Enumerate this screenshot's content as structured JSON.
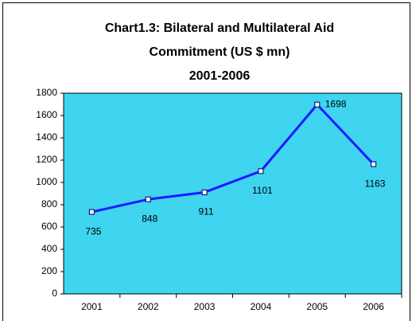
{
  "chart_data": {
    "type": "line",
    "title": [
      "Chart1.3:  Bilateral and Multilateral Aid",
      "Commitment (US $ mn)",
      "2001-2006"
    ],
    "categories": [
      "2001",
      "2002",
      "2003",
      "2004",
      "2005",
      "2006"
    ],
    "series": [
      {
        "name": "Aid Commitment",
        "color": "#1a1aff",
        "values": [
          735,
          848,
          911,
          1101,
          1698,
          1163
        ]
      }
    ],
    "ylim": [
      0,
      1800
    ],
    "yticks": [
      0,
      200,
      400,
      600,
      800,
      1000,
      1200,
      1400,
      1600,
      1800
    ],
    "plot_background": "#3fd4ef",
    "grid": false
  }
}
